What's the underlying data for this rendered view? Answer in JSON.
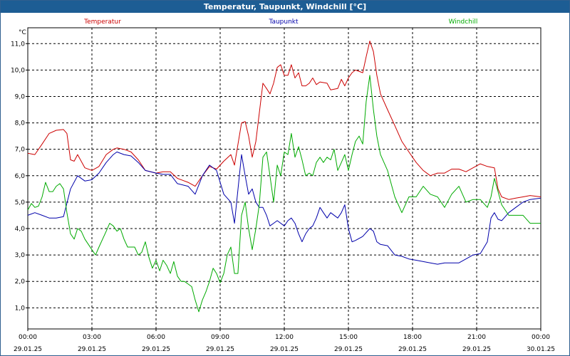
{
  "window": {
    "title": "Temperatur, Taupunkt, Windchill [°C]"
  },
  "chart_data": {
    "type": "line",
    "title": "Temperatur, Taupunkt, Windchill [°C]",
    "ylabel": "°C",
    "ylim": [
      0.2,
      11.6
    ],
    "yticks": [
      1.0,
      2.0,
      3.0,
      4.0,
      5.0,
      6.0,
      7.0,
      8.0,
      9.0,
      10.0,
      11.0
    ],
    "ytick_labels": [
      "1,0",
      "2,0",
      "3,0",
      "4,0",
      "5,0",
      "6,0",
      "7,0",
      "8,0",
      "9,0",
      "10,0",
      "11,0"
    ],
    "xlim": [
      0,
      24
    ],
    "xticks": [
      0,
      3,
      6,
      9,
      12,
      15,
      18,
      21,
      24
    ],
    "xtick_labels": [
      {
        "time": "00:00",
        "date": "29.01.25"
      },
      {
        "time": "03:00",
        "date": "29.01.25"
      },
      {
        "time": "06:00",
        "date": "29.01.25"
      },
      {
        "time": "09:00",
        "date": "29.01.25"
      },
      {
        "time": "12:00",
        "date": "29.01.25"
      },
      {
        "time": "15:00",
        "date": "29.01.25"
      },
      {
        "time": "18:00",
        "date": "29.01.25"
      },
      {
        "time": "21:00",
        "date": "29.01.25"
      },
      {
        "time": "00:00",
        "date": "30.01.25"
      }
    ],
    "grid": true,
    "legend_position": "top",
    "series": [
      {
        "name": "Temperatur",
        "color": "#cc0000",
        "points": [
          [
            0.0,
            6.85
          ],
          [
            0.33,
            6.8
          ],
          [
            0.67,
            7.2
          ],
          [
            1.0,
            7.6
          ],
          [
            1.33,
            7.72
          ],
          [
            1.67,
            7.75
          ],
          [
            1.83,
            7.6
          ],
          [
            2.0,
            6.6
          ],
          [
            2.17,
            6.55
          ],
          [
            2.33,
            6.8
          ],
          [
            2.67,
            6.3
          ],
          [
            3.0,
            6.2
          ],
          [
            3.33,
            6.35
          ],
          [
            3.67,
            6.8
          ],
          [
            4.0,
            7.0
          ],
          [
            4.17,
            7.05
          ],
          [
            4.5,
            7.0
          ],
          [
            4.83,
            6.9
          ],
          [
            5.17,
            6.6
          ],
          [
            5.5,
            6.2
          ],
          [
            6.0,
            6.1
          ],
          [
            6.33,
            6.15
          ],
          [
            6.67,
            6.15
          ],
          [
            7.0,
            5.9
          ],
          [
            7.5,
            5.75
          ],
          [
            7.83,
            5.6
          ],
          [
            8.17,
            6.0
          ],
          [
            8.5,
            6.35
          ],
          [
            8.83,
            6.25
          ],
          [
            9.17,
            6.55
          ],
          [
            9.5,
            6.8
          ],
          [
            9.67,
            6.4
          ],
          [
            10.0,
            8.0
          ],
          [
            10.17,
            8.05
          ],
          [
            10.33,
            7.5
          ],
          [
            10.5,
            6.7
          ],
          [
            10.67,
            7.3
          ],
          [
            11.0,
            9.5
          ],
          [
            11.17,
            9.3
          ],
          [
            11.33,
            9.1
          ],
          [
            11.5,
            9.5
          ],
          [
            11.67,
            10.1
          ],
          [
            11.83,
            10.2
          ],
          [
            12.0,
            9.8
          ],
          [
            12.17,
            9.8
          ],
          [
            12.33,
            10.2
          ],
          [
            12.5,
            9.7
          ],
          [
            12.67,
            9.9
          ],
          [
            12.83,
            9.4
          ],
          [
            13.0,
            9.4
          ],
          [
            13.17,
            9.5
          ],
          [
            13.33,
            9.7
          ],
          [
            13.5,
            9.45
          ],
          [
            13.67,
            9.55
          ],
          [
            14.0,
            9.5
          ],
          [
            14.17,
            9.25
          ],
          [
            14.5,
            9.3
          ],
          [
            14.67,
            9.65
          ],
          [
            14.83,
            9.4
          ],
          [
            15.0,
            9.7
          ],
          [
            15.17,
            9.9
          ],
          [
            15.33,
            10.0
          ],
          [
            15.67,
            9.9
          ],
          [
            15.83,
            10.5
          ],
          [
            16.0,
            11.1
          ],
          [
            16.17,
            10.7
          ],
          [
            16.33,
            9.8
          ],
          [
            16.5,
            9.1
          ],
          [
            16.83,
            8.5
          ],
          [
            17.17,
            7.9
          ],
          [
            17.5,
            7.3
          ],
          [
            17.83,
            6.9
          ],
          [
            18.17,
            6.5
          ],
          [
            18.5,
            6.2
          ],
          [
            18.83,
            6.0
          ],
          [
            19.17,
            6.1
          ],
          [
            19.5,
            6.1
          ],
          [
            19.83,
            6.25
          ],
          [
            20.17,
            6.25
          ],
          [
            20.5,
            6.15
          ],
          [
            20.83,
            6.3
          ],
          [
            21.17,
            6.45
          ],
          [
            21.5,
            6.35
          ],
          [
            21.83,
            6.3
          ],
          [
            22.0,
            5.5
          ],
          [
            22.17,
            5.2
          ],
          [
            22.5,
            5.1
          ],
          [
            22.83,
            5.15
          ],
          [
            23.17,
            5.2
          ],
          [
            23.5,
            5.25
          ],
          [
            24.0,
            5.2
          ]
        ]
      },
      {
        "name": "Taupunkt",
        "color": "#0000aa",
        "points": [
          [
            0.0,
            4.5
          ],
          [
            0.33,
            4.6
          ],
          [
            0.67,
            4.5
          ],
          [
            1.0,
            4.4
          ],
          [
            1.33,
            4.4
          ],
          [
            1.67,
            4.45
          ],
          [
            2.0,
            5.5
          ],
          [
            2.33,
            6.0
          ],
          [
            2.67,
            5.8
          ],
          [
            3.0,
            5.85
          ],
          [
            3.33,
            6.1
          ],
          [
            3.67,
            6.5
          ],
          [
            4.0,
            6.8
          ],
          [
            4.17,
            6.9
          ],
          [
            4.5,
            6.8
          ],
          [
            4.83,
            6.75
          ],
          [
            5.17,
            6.5
          ],
          [
            5.5,
            6.2
          ],
          [
            6.0,
            6.1
          ],
          [
            6.33,
            6.05
          ],
          [
            6.67,
            6.05
          ],
          [
            7.0,
            5.7
          ],
          [
            7.5,
            5.6
          ],
          [
            7.83,
            5.3
          ],
          [
            8.17,
            6.0
          ],
          [
            8.5,
            6.4
          ],
          [
            8.83,
            6.2
          ],
          [
            9.17,
            5.3
          ],
          [
            9.5,
            5.0
          ],
          [
            9.67,
            4.2
          ],
          [
            10.0,
            6.8
          ],
          [
            10.17,
            6.0
          ],
          [
            10.33,
            5.3
          ],
          [
            10.5,
            5.5
          ],
          [
            10.67,
            5.0
          ],
          [
            10.83,
            4.8
          ],
          [
            11.0,
            4.8
          ],
          [
            11.17,
            4.5
          ],
          [
            11.33,
            4.1
          ],
          [
            11.5,
            4.2
          ],
          [
            11.67,
            4.3
          ],
          [
            12.0,
            4.1
          ],
          [
            12.17,
            4.3
          ],
          [
            12.33,
            4.4
          ],
          [
            12.5,
            4.2
          ],
          [
            12.67,
            3.8
          ],
          [
            12.83,
            3.5
          ],
          [
            13.0,
            3.8
          ],
          [
            13.17,
            4.0
          ],
          [
            13.33,
            4.1
          ],
          [
            13.5,
            4.4
          ],
          [
            13.67,
            4.8
          ],
          [
            13.83,
            4.6
          ],
          [
            14.0,
            4.4
          ],
          [
            14.17,
            4.6
          ],
          [
            14.5,
            4.4
          ],
          [
            14.67,
            4.6
          ],
          [
            14.83,
            4.9
          ],
          [
            15.0,
            4.0
          ],
          [
            15.17,
            3.5
          ],
          [
            15.33,
            3.55
          ],
          [
            15.67,
            3.7
          ],
          [
            16.0,
            4.0
          ],
          [
            16.17,
            3.9
          ],
          [
            16.33,
            3.5
          ],
          [
            16.5,
            3.4
          ],
          [
            16.83,
            3.35
          ],
          [
            17.17,
            3.0
          ],
          [
            17.5,
            2.95
          ],
          [
            17.83,
            2.85
          ],
          [
            18.17,
            2.8
          ],
          [
            18.5,
            2.75
          ],
          [
            18.83,
            2.7
          ],
          [
            19.17,
            2.65
          ],
          [
            19.5,
            2.7
          ],
          [
            19.83,
            2.7
          ],
          [
            20.17,
            2.7
          ],
          [
            20.5,
            2.85
          ],
          [
            20.83,
            3.0
          ],
          [
            21.17,
            3.05
          ],
          [
            21.5,
            3.5
          ],
          [
            21.67,
            4.4
          ],
          [
            21.83,
            4.6
          ],
          [
            22.0,
            4.35
          ],
          [
            22.17,
            4.3
          ],
          [
            22.5,
            4.6
          ],
          [
            22.83,
            4.8
          ],
          [
            23.17,
            5.0
          ],
          [
            23.5,
            5.1
          ],
          [
            24.0,
            5.15
          ]
        ]
      },
      {
        "name": "Windchill",
        "color": "#00aa00",
        "points": [
          [
            0.0,
            4.7
          ],
          [
            0.17,
            4.95
          ],
          [
            0.33,
            4.8
          ],
          [
            0.5,
            4.85
          ],
          [
            0.67,
            5.2
          ],
          [
            0.83,
            5.75
          ],
          [
            1.0,
            5.4
          ],
          [
            1.17,
            5.4
          ],
          [
            1.33,
            5.6
          ],
          [
            1.5,
            5.7
          ],
          [
            1.67,
            5.5
          ],
          [
            1.83,
            4.6
          ],
          [
            2.0,
            3.8
          ],
          [
            2.17,
            3.6
          ],
          [
            2.33,
            4.0
          ],
          [
            2.5,
            3.9
          ],
          [
            2.67,
            3.6
          ],
          [
            3.0,
            3.2
          ],
          [
            3.17,
            3.0
          ],
          [
            3.33,
            3.3
          ],
          [
            3.5,
            3.6
          ],
          [
            3.67,
            3.9
          ],
          [
            3.83,
            4.2
          ],
          [
            4.0,
            4.1
          ],
          [
            4.17,
            3.9
          ],
          [
            4.33,
            4.0
          ],
          [
            4.5,
            3.6
          ],
          [
            4.67,
            3.3
          ],
          [
            4.83,
            3.3
          ],
          [
            5.0,
            3.3
          ],
          [
            5.17,
            3.0
          ],
          [
            5.33,
            3.1
          ],
          [
            5.5,
            3.5
          ],
          [
            5.67,
            2.9
          ],
          [
            5.83,
            2.5
          ],
          [
            6.0,
            2.8
          ],
          [
            6.17,
            2.4
          ],
          [
            6.33,
            2.8
          ],
          [
            6.5,
            2.6
          ],
          [
            6.67,
            2.3
          ],
          [
            6.83,
            2.75
          ],
          [
            7.0,
            2.2
          ],
          [
            7.17,
            2.0
          ],
          [
            7.33,
            2.0
          ],
          [
            7.5,
            1.9
          ],
          [
            7.67,
            1.8
          ],
          [
            7.83,
            1.3
          ],
          [
            8.0,
            0.85
          ],
          [
            8.17,
            1.3
          ],
          [
            8.33,
            1.6
          ],
          [
            8.5,
            2.0
          ],
          [
            8.67,
            2.5
          ],
          [
            8.83,
            2.3
          ],
          [
            9.0,
            1.95
          ],
          [
            9.17,
            2.3
          ],
          [
            9.33,
            3.0
          ],
          [
            9.5,
            3.3
          ],
          [
            9.67,
            2.3
          ],
          [
            9.83,
            2.3
          ],
          [
            10.0,
            4.5
          ],
          [
            10.17,
            5.0
          ],
          [
            10.33,
            4.0
          ],
          [
            10.5,
            3.2
          ],
          [
            10.67,
            4.0
          ],
          [
            10.83,
            4.9
          ],
          [
            11.0,
            6.7
          ],
          [
            11.17,
            6.9
          ],
          [
            11.33,
            6.0
          ],
          [
            11.5,
            5.0
          ],
          [
            11.67,
            6.4
          ],
          [
            11.83,
            6.0
          ],
          [
            12.0,
            6.9
          ],
          [
            12.17,
            6.8
          ],
          [
            12.33,
            7.6
          ],
          [
            12.5,
            6.7
          ],
          [
            12.67,
            7.1
          ],
          [
            12.83,
            6.6
          ],
          [
            13.0,
            6.0
          ],
          [
            13.17,
            6.1
          ],
          [
            13.33,
            6.0
          ],
          [
            13.5,
            6.5
          ],
          [
            13.67,
            6.7
          ],
          [
            13.83,
            6.5
          ],
          [
            14.0,
            6.7
          ],
          [
            14.17,
            6.6
          ],
          [
            14.33,
            7.0
          ],
          [
            14.5,
            6.2
          ],
          [
            14.67,
            6.5
          ],
          [
            14.83,
            6.8
          ],
          [
            15.0,
            6.2
          ],
          [
            15.17,
            6.8
          ],
          [
            15.33,
            7.3
          ],
          [
            15.5,
            7.5
          ],
          [
            15.67,
            7.2
          ],
          [
            15.83,
            8.8
          ],
          [
            16.0,
            9.8
          ],
          [
            16.17,
            8.5
          ],
          [
            16.33,
            7.5
          ],
          [
            16.5,
            6.8
          ],
          [
            16.83,
            6.2
          ],
          [
            17.17,
            5.2
          ],
          [
            17.5,
            4.6
          ],
          [
            17.83,
            5.2
          ],
          [
            18.17,
            5.2
          ],
          [
            18.5,
            5.6
          ],
          [
            18.83,
            5.3
          ],
          [
            19.17,
            5.2
          ],
          [
            19.5,
            4.8
          ],
          [
            19.83,
            5.3
          ],
          [
            20.17,
            5.6
          ],
          [
            20.5,
            5.0
          ],
          [
            20.83,
            5.1
          ],
          [
            21.17,
            5.1
          ],
          [
            21.5,
            4.8
          ],
          [
            21.67,
            5.2
          ],
          [
            21.83,
            5.9
          ],
          [
            22.0,
            5.4
          ],
          [
            22.17,
            4.9
          ],
          [
            22.5,
            4.5
          ],
          [
            22.83,
            4.5
          ],
          [
            23.17,
            4.5
          ],
          [
            23.5,
            4.2
          ],
          [
            24.0,
            4.2
          ]
        ]
      }
    ]
  }
}
